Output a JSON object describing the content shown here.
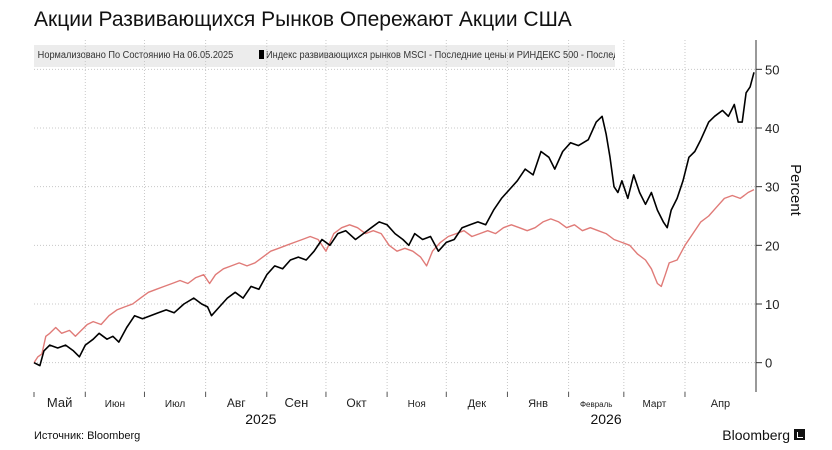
{
  "title": "Акции Развивающихся Рынков Опережают Акции США",
  "legend": {
    "note": "Нормализовано По Состоянию На 06.05.2025",
    "series_text": "Индекс развивающихся рынков MSCI - Последние цены и РИНДЕКС 500 - Последняя цена"
  },
  "source": "Источник: Bloomberg",
  "brand": "Bloomberg",
  "colors": {
    "em": "#000000",
    "us": "#e07b78",
    "grid": "#c8c8c8"
  },
  "chart_data": {
    "type": "line",
    "ylabel": "Percent",
    "ylim": [
      -5,
      55
    ],
    "yticks": [
      0,
      10,
      20,
      30,
      40,
      50
    ],
    "xlim": [
      0,
      366
    ],
    "months": [
      {
        "label": "Май",
        "x": 0
      },
      {
        "label": "Июн",
        "x": 26
      },
      {
        "label": "Июл",
        "x": 56
      },
      {
        "label": "Авг",
        "x": 87
      },
      {
        "label": "Сен",
        "x": 118
      },
      {
        "label": "Окт",
        "x": 148
      },
      {
        "label": "Ноя",
        "x": 179
      },
      {
        "label": "Дек",
        "x": 209
      },
      {
        "label": "Янв",
        "x": 240
      },
      {
        "label": "Февраль",
        "x": 271
      },
      {
        "label": "Март",
        "x": 299
      },
      {
        "label": "Апр",
        "x": 330
      }
    ],
    "years": [
      {
        "label": "2025",
        "x": 115
      },
      {
        "label": "2026",
        "x": 290
      }
    ],
    "series": [
      {
        "name": "Индекс развивающихся рынков MSCI",
        "key": "em",
        "points": [
          [
            0,
            0
          ],
          [
            3,
            -0.5
          ],
          [
            5,
            2
          ],
          [
            8,
            3
          ],
          [
            12,
            2.5
          ],
          [
            16,
            3
          ],
          [
            20,
            2
          ],
          [
            23,
            1
          ],
          [
            26,
            3
          ],
          [
            30,
            4
          ],
          [
            33,
            5
          ],
          [
            37,
            4
          ],
          [
            40,
            4.5
          ],
          [
            43,
            3.5
          ],
          [
            47,
            6
          ],
          [
            51,
            8
          ],
          [
            55,
            7.5
          ],
          [
            59,
            8
          ],
          [
            63,
            8.5
          ],
          [
            67,
            9
          ],
          [
            71,
            8.5
          ],
          [
            76,
            10
          ],
          [
            81,
            11
          ],
          [
            85,
            10
          ],
          [
            88,
            9.5
          ],
          [
            90,
            8
          ],
          [
            94,
            9.5
          ],
          [
            98,
            11
          ],
          [
            102,
            12
          ],
          [
            106,
            11
          ],
          [
            110,
            13
          ],
          [
            114,
            12.5
          ],
          [
            118,
            15
          ],
          [
            122,
            16.5
          ],
          [
            126,
            16
          ],
          [
            130,
            17.5
          ],
          [
            134,
            18
          ],
          [
            138,
            17.5
          ],
          [
            142,
            19
          ],
          [
            146,
            21
          ],
          [
            150,
            20
          ],
          [
            154,
            22
          ],
          [
            158,
            22.5
          ],
          [
            163,
            21
          ],
          [
            167,
            22
          ],
          [
            171,
            23
          ],
          [
            175,
            24
          ],
          [
            179,
            23.5
          ],
          [
            183,
            22
          ],
          [
            187,
            21
          ],
          [
            190,
            20
          ],
          [
            193,
            22
          ],
          [
            197,
            21
          ],
          [
            201,
            21.5
          ],
          [
            205,
            19
          ],
          [
            209,
            20.5
          ],
          [
            213,
            21
          ],
          [
            217,
            23
          ],
          [
            221,
            23.5
          ],
          [
            225,
            24
          ],
          [
            229,
            23.5
          ],
          [
            233,
            26
          ],
          [
            237,
            28
          ],
          [
            241,
            29.5
          ],
          [
            245,
            31
          ],
          [
            249,
            33
          ],
          [
            253,
            32
          ],
          [
            257,
            36
          ],
          [
            261,
            35
          ],
          [
            264,
            33
          ],
          [
            268,
            36
          ],
          [
            272,
            37.5
          ],
          [
            276,
            37
          ],
          [
            281,
            38
          ],
          [
            285,
            41
          ],
          [
            288,
            42
          ],
          [
            290,
            39
          ],
          [
            292,
            35
          ],
          [
            294,
            30
          ],
          [
            296,
            29
          ],
          [
            298,
            31
          ],
          [
            301,
            28
          ],
          [
            304,
            32
          ],
          [
            307,
            29
          ],
          [
            310,
            27
          ],
          [
            313,
            29
          ],
          [
            316,
            26
          ],
          [
            319,
            24
          ],
          [
            321,
            23
          ],
          [
            323,
            26
          ],
          [
            326,
            28
          ],
          [
            329,
            31
          ],
          [
            332,
            35
          ],
          [
            335,
            36
          ],
          [
            338,
            38
          ],
          [
            342,
            41
          ],
          [
            345,
            42
          ],
          [
            349,
            43
          ],
          [
            352,
            42
          ],
          [
            355,
            44
          ],
          [
            357,
            41
          ],
          [
            359,
            41
          ],
          [
            361,
            46
          ],
          [
            363,
            47
          ],
          [
            365,
            49.5
          ]
        ]
      },
      {
        "name": "РИНДЕКС 500",
        "key": "us",
        "points": [
          [
            0,
            0
          ],
          [
            2,
            1
          ],
          [
            4,
            1.5
          ],
          [
            6,
            4.5
          ],
          [
            8,
            5
          ],
          [
            11,
            6
          ],
          [
            14,
            5
          ],
          [
            18,
            5.5
          ],
          [
            21,
            4.5
          ],
          [
            24,
            5.5
          ],
          [
            27,
            6.5
          ],
          [
            30,
            7
          ],
          [
            34,
            6.5
          ],
          [
            38,
            8
          ],
          [
            42,
            9
          ],
          [
            46,
            9.5
          ],
          [
            50,
            10
          ],
          [
            54,
            11
          ],
          [
            58,
            12
          ],
          [
            62,
            12.5
          ],
          [
            66,
            13
          ],
          [
            70,
            13.5
          ],
          [
            74,
            14
          ],
          [
            78,
            13.5
          ],
          [
            82,
            14.5
          ],
          [
            86,
            15
          ],
          [
            89,
            13.5
          ],
          [
            92,
            15
          ],
          [
            96,
            16
          ],
          [
            100,
            16.5
          ],
          [
            104,
            17
          ],
          [
            108,
            16.5
          ],
          [
            112,
            17
          ],
          [
            116,
            18
          ],
          [
            120,
            19
          ],
          [
            124,
            19.5
          ],
          [
            128,
            20
          ],
          [
            132,
            20.5
          ],
          [
            136,
            21
          ],
          [
            140,
            21.5
          ],
          [
            144,
            21
          ],
          [
            148,
            19
          ],
          [
            152,
            22
          ],
          [
            156,
            23
          ],
          [
            160,
            23.5
          ],
          [
            164,
            23
          ],
          [
            168,
            22
          ],
          [
            172,
            22.5
          ],
          [
            176,
            22
          ],
          [
            180,
            20
          ],
          [
            184,
            19
          ],
          [
            188,
            19.5
          ],
          [
            192,
            19
          ],
          [
            196,
            18
          ],
          [
            199,
            16.5
          ],
          [
            202,
            19
          ],
          [
            206,
            20.5
          ],
          [
            210,
            21.5
          ],
          [
            214,
            22
          ],
          [
            218,
            22.5
          ],
          [
            222,
            21.5
          ],
          [
            226,
            22
          ],
          [
            230,
            22.5
          ],
          [
            234,
            22
          ],
          [
            238,
            23
          ],
          [
            242,
            23.5
          ],
          [
            246,
            23
          ],
          [
            250,
            22.5
          ],
          [
            254,
            23
          ],
          [
            258,
            24
          ],
          [
            262,
            24.5
          ],
          [
            266,
            24
          ],
          [
            270,
            23
          ],
          [
            274,
            23.5
          ],
          [
            278,
            22.5
          ],
          [
            282,
            23
          ],
          [
            286,
            22.5
          ],
          [
            290,
            22
          ],
          [
            294,
            21
          ],
          [
            298,
            20.5
          ],
          [
            302,
            20
          ],
          [
            306,
            18.5
          ],
          [
            310,
            17.5
          ],
          [
            313,
            16
          ],
          [
            316,
            13.5
          ],
          [
            318,
            13
          ],
          [
            320,
            15
          ],
          [
            322,
            17
          ],
          [
            326,
            17.5
          ],
          [
            330,
            20
          ],
          [
            334,
            22
          ],
          [
            338,
            24
          ],
          [
            342,
            25
          ],
          [
            346,
            26.5
          ],
          [
            350,
            28
          ],
          [
            354,
            28.5
          ],
          [
            358,
            28
          ],
          [
            360,
            28.5
          ],
          [
            362,
            29
          ],
          [
            365,
            29.5
          ]
        ]
      }
    ]
  }
}
